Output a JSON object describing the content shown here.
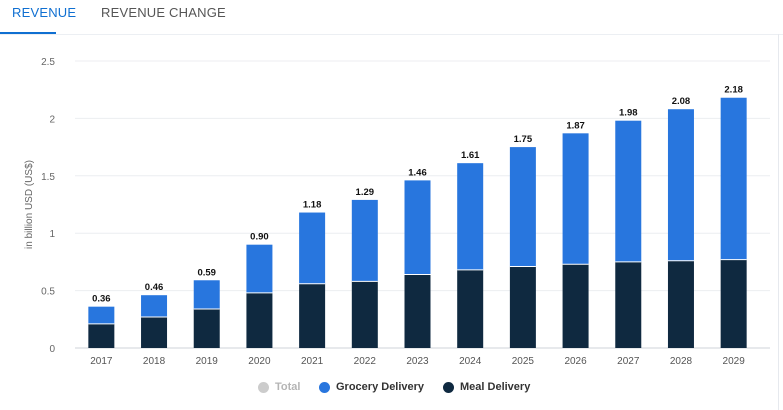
{
  "tabs": {
    "revenue": "REVENUE",
    "revenue_change": "REVENUE CHANGE"
  },
  "colors": {
    "accent": "#0f6fd1",
    "grocery": "#2876de",
    "meal": "#0f2940",
    "total_disabled": "#cccccc"
  },
  "legend": {
    "total": "Total",
    "grocery": "Grocery Delivery",
    "meal": "Meal Delivery"
  },
  "chart_data": {
    "type": "bar",
    "stacked": true,
    "ylabel": "in billion USD (US$)",
    "ylim": [
      0,
      2.5
    ],
    "yticks": [
      "0",
      "0.5",
      "1",
      "1.5",
      "2",
      "2.5"
    ],
    "categories": [
      "2017",
      "2018",
      "2019",
      "2020",
      "2021",
      "2022",
      "2023",
      "2024",
      "2025",
      "2026",
      "2027",
      "2028",
      "2029"
    ],
    "series": [
      {
        "name": "Meal Delivery",
        "values": [
          0.21,
          0.27,
          0.34,
          0.48,
          0.56,
          0.58,
          0.64,
          0.68,
          0.71,
          0.73,
          0.75,
          0.76,
          0.77
        ]
      },
      {
        "name": "Grocery Delivery",
        "values": [
          0.15,
          0.19,
          0.25,
          0.42,
          0.62,
          0.71,
          0.82,
          0.93,
          1.04,
          1.14,
          1.23,
          1.32,
          1.41
        ]
      }
    ],
    "totals": [
      "0.36",
      "0.46",
      "0.59",
      "0.90",
      "1.18",
      "1.29",
      "1.46",
      "1.61",
      "1.75",
      "1.87",
      "1.98",
      "2.08",
      "2.18"
    ],
    "grid": true,
    "legend_position": "bottom-center"
  }
}
